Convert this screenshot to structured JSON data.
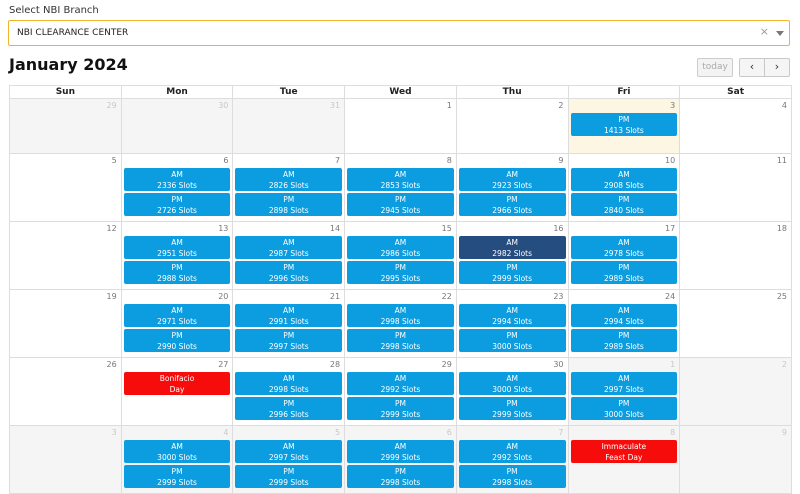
{
  "branch": {
    "label": "Select NBI Branch",
    "value": "NBI CLEARANCE CENTER",
    "clear": "×"
  },
  "calendar": {
    "title": "January 2024",
    "today_label": "today",
    "prev_icon": "‹",
    "next_icon": "›",
    "weekdays": [
      "Sun",
      "Mon",
      "Tue",
      "Wed",
      "Thu",
      "Fri",
      "Sat"
    ],
    "weeks": [
      [
        {
          "day": "29",
          "other": true,
          "events": []
        },
        {
          "day": "30",
          "other": true,
          "events": []
        },
        {
          "day": "31",
          "other": true,
          "events": []
        },
        {
          "day": "1",
          "events": []
        },
        {
          "day": "2",
          "events": []
        },
        {
          "day": "3",
          "today": true,
          "events": [
            {
              "t1": "PM",
              "t2": "1413 Slots"
            }
          ]
        },
        {
          "day": "4",
          "events": []
        }
      ],
      [
        {
          "day": "5",
          "events": []
        },
        {
          "day": "6",
          "events": [
            {
              "t1": "AM",
              "t2": "2336 Slots"
            },
            {
              "t1": "PM",
              "t2": "2726 Slots"
            }
          ]
        },
        {
          "day": "7",
          "events": [
            {
              "t1": "AM",
              "t2": "2826 Slots"
            },
            {
              "t1": "PM",
              "t2": "2898 Slots"
            }
          ]
        },
        {
          "day": "8",
          "events": [
            {
              "t1": "AM",
              "t2": "2853 Slots"
            },
            {
              "t1": "PM",
              "t2": "2945 Slots"
            }
          ]
        },
        {
          "day": "9",
          "events": [
            {
              "t1": "AM",
              "t2": "2923 Slots"
            },
            {
              "t1": "PM",
              "t2": "2966 Slots"
            }
          ]
        },
        {
          "day": "10",
          "events": [
            {
              "t1": "AM",
              "t2": "2908 Slots"
            },
            {
              "t1": "PM",
              "t2": "2840 Slots"
            }
          ]
        },
        {
          "day": "11",
          "events": []
        }
      ],
      [
        {
          "day": "12",
          "events": []
        },
        {
          "day": "13",
          "events": [
            {
              "t1": "AM",
              "t2": "2951 Slots"
            },
            {
              "t1": "PM",
              "t2": "2988 Slots"
            }
          ]
        },
        {
          "day": "14",
          "events": [
            {
              "t1": "AM",
              "t2": "2987 Slots"
            },
            {
              "t1": "PM",
              "t2": "2996 Slots"
            }
          ]
        },
        {
          "day": "15",
          "events": [
            {
              "t1": "AM",
              "t2": "2986 Slots"
            },
            {
              "t1": "PM",
              "t2": "2995 Slots"
            }
          ]
        },
        {
          "day": "16",
          "events": [
            {
              "t1": "AM",
              "t2": "2982 Slots",
              "selected": true
            },
            {
              "t1": "PM",
              "t2": "2999 Slots"
            }
          ]
        },
        {
          "day": "17",
          "events": [
            {
              "t1": "AM",
              "t2": "2978 Slots"
            },
            {
              "t1": "PM",
              "t2": "2989 Slots"
            }
          ]
        },
        {
          "day": "18",
          "events": []
        }
      ],
      [
        {
          "day": "19",
          "events": []
        },
        {
          "day": "20",
          "events": [
            {
              "t1": "AM",
              "t2": "2971 Slots"
            },
            {
              "t1": "PM",
              "t2": "2990 Slots"
            }
          ]
        },
        {
          "day": "21",
          "events": [
            {
              "t1": "AM",
              "t2": "2991 Slots"
            },
            {
              "t1": "PM",
              "t2": "2997 Slots"
            }
          ]
        },
        {
          "day": "22",
          "events": [
            {
              "t1": "AM",
              "t2": "2998 Slots"
            },
            {
              "t1": "PM",
              "t2": "2998 Slots"
            }
          ]
        },
        {
          "day": "23",
          "events": [
            {
              "t1": "AM",
              "t2": "2994 Slots"
            },
            {
              "t1": "PM",
              "t2": "3000 Slots"
            }
          ]
        },
        {
          "day": "24",
          "events": [
            {
              "t1": "AM",
              "t2": "2994 Slots"
            },
            {
              "t1": "PM",
              "t2": "2989 Slots"
            }
          ]
        },
        {
          "day": "25",
          "events": []
        }
      ],
      [
        {
          "day": "26",
          "events": []
        },
        {
          "day": "27",
          "events": [
            {
              "t1": "Bonifacio",
              "t2": "Day",
              "holiday": true
            }
          ]
        },
        {
          "day": "28",
          "events": [
            {
              "t1": "AM",
              "t2": "2998 Slots"
            },
            {
              "t1": "PM",
              "t2": "2996 Slots"
            }
          ]
        },
        {
          "day": "29",
          "events": [
            {
              "t1": "AM",
              "t2": "2992 Slots"
            },
            {
              "t1": "PM",
              "t2": "2999 Slots"
            }
          ]
        },
        {
          "day": "30",
          "events": [
            {
              "t1": "AM",
              "t2": "3000 Slots"
            },
            {
              "t1": "PM",
              "t2": "2999 Slots"
            }
          ]
        },
        {
          "day": "1",
          "other": true,
          "events": [
            {
              "t1": "AM",
              "t2": "2997 Slots"
            },
            {
              "t1": "PM",
              "t2": "3000 Slots"
            }
          ]
        },
        {
          "day": "2",
          "other": true,
          "events": []
        }
      ],
      [
        {
          "day": "3",
          "other": true,
          "events": []
        },
        {
          "day": "4",
          "other": true,
          "events": [
            {
              "t1": "AM",
              "t2": "3000 Slots"
            },
            {
              "t1": "PM",
              "t2": "2999 Slots"
            }
          ]
        },
        {
          "day": "5",
          "other": true,
          "events": [
            {
              "t1": "AM",
              "t2": "2997 Slots"
            },
            {
              "t1": "PM",
              "t2": "2999 Slots"
            }
          ]
        },
        {
          "day": "6",
          "other": true,
          "events": [
            {
              "t1": "AM",
              "t2": "2999 Slots"
            },
            {
              "t1": "PM",
              "t2": "2998 Slots"
            }
          ]
        },
        {
          "day": "7",
          "other": true,
          "events": [
            {
              "t1": "AM",
              "t2": "2992 Slots"
            },
            {
              "t1": "PM",
              "t2": "2998 Slots"
            }
          ]
        },
        {
          "day": "8",
          "other": true,
          "events": [
            {
              "t1": "Immaculate",
              "t2": "Feast Day",
              "holiday": true
            }
          ]
        },
        {
          "day": "9",
          "other": true,
          "events": []
        }
      ]
    ]
  },
  "colors": {
    "event": "#0b9de0",
    "event_selected": "#264d80",
    "holiday": "#f70c0c",
    "today_bg": "#fcf6e3",
    "select_border": "#f0b429"
  }
}
